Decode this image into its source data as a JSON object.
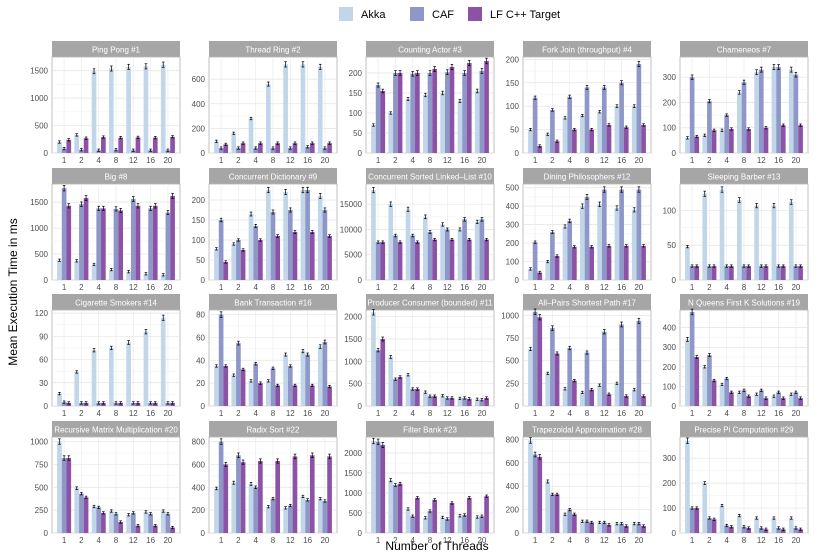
{
  "chart_data": {
    "type": "bar",
    "title": "",
    "xlabel": "Number of Threads",
    "ylabel": "Mean Execution Time in ms",
    "categories": [
      "1",
      "2",
      "4",
      "8",
      "12",
      "16",
      "20"
    ],
    "legend": {
      "placement": "top",
      "entries": [
        {
          "name": "Akka",
          "color": "#c2d6ea"
        },
        {
          "name": "CAF",
          "color": "#8e97c8"
        },
        {
          "name": "LF C++ Target",
          "color": "#8b52a6"
        }
      ]
    },
    "panels": [
      {
        "title": "Ping Pong #1",
        "ylim": [
          0,
          1750
        ],
        "yticks": [
          0,
          500,
          1000,
          1500
        ],
        "series": [
          {
            "name": "Akka",
            "values": [
              200,
              330,
              1490,
              1540,
              1570,
              1580,
              1610
            ]
          },
          {
            "name": "CAF",
            "values": [
              80,
              60,
              50,
              60,
              50,
              50,
              50
            ]
          },
          {
            "name": "LF C++ Target",
            "values": [
              240,
              270,
              290,
              280,
              285,
              280,
              295
            ]
          }
        ]
      },
      {
        "title": "Thread Ring #2",
        "ylim": [
          0,
          780
        ],
        "yticks": [
          0,
          200,
          400,
          600
        ],
        "series": [
          {
            "name": "Akka",
            "values": [
              95,
              160,
              280,
              560,
              720,
              720,
              700
            ]
          },
          {
            "name": "CAF",
            "values": [
              40,
              40,
              40,
              40,
              40,
              50,
              40
            ]
          },
          {
            "name": "LF C++ Target",
            "values": [
              70,
              80,
              80,
              80,
              80,
              80,
              80
            ]
          }
        ]
      },
      {
        "title": "Counting Actor #3",
        "ylim": [
          0,
          240
        ],
        "yticks": [
          0,
          50,
          100,
          150,
          200
        ],
        "series": [
          {
            "name": "Akka",
            "values": [
              70,
              100,
              135,
              145,
              150,
              130,
              155
            ]
          },
          {
            "name": "CAF",
            "values": [
              170,
              200,
              198,
              200,
              202,
              200,
              205
            ]
          },
          {
            "name": "LF C++ Target",
            "values": [
              155,
              200,
              200,
              210,
              215,
              225,
              230
            ]
          }
        ]
      },
      {
        "title": "Fork Join (throughput) #4",
        "ylim": [
          0,
          205
        ],
        "yticks": [
          0,
          50,
          100,
          150,
          200
        ],
        "series": [
          {
            "name": "Akka",
            "values": [
              50,
              40,
              75,
              80,
              88,
              100,
              100
            ]
          },
          {
            "name": "CAF",
            "values": [
              118,
              92,
              120,
              140,
              140,
              150,
              190
            ]
          },
          {
            "name": "LF C++ Target",
            "values": [
              15,
              25,
              50,
              50,
              60,
              55,
              60
            ]
          }
        ]
      },
      {
        "title": "Chameneos #7",
        "ylim": [
          0,
          380
        ],
        "yticks": [
          0,
          100,
          200,
          300
        ],
        "series": [
          {
            "name": "Akka",
            "values": [
              60,
              70,
              90,
              240,
              320,
              340,
              330
            ]
          },
          {
            "name": "CAF",
            "values": [
              300,
              205,
              150,
              280,
              330,
              340,
              310
            ]
          },
          {
            "name": "LF C++ Target",
            "values": [
              65,
              90,
              95,
              95,
              100,
              110,
              110
            ]
          }
        ]
      },
      {
        "title": "Big #8",
        "ylim": [
          0,
          1850
        ],
        "yticks": [
          0,
          500,
          1000,
          1500
        ],
        "series": [
          {
            "name": "Akka",
            "values": [
              380,
              370,
              300,
              200,
              160,
              120,
              100
            ]
          },
          {
            "name": "CAF",
            "values": [
              1770,
              1460,
              1380,
              1370,
              1560,
              1380,
              1300
            ]
          },
          {
            "name": "LF C++ Target",
            "values": [
              1430,
              1580,
              1380,
              1340,
              1430,
              1430,
              1620
            ]
          }
        ]
      },
      {
        "title": "Concurrent Dictionary #9",
        "ylim": [
          0,
          240
        ],
        "yticks": [
          0,
          50,
          100,
          150,
          200
        ],
        "series": [
          {
            "name": "Akka",
            "values": [
              78,
              90,
              165,
              225,
              220,
              225,
              210
            ]
          },
          {
            "name": "CAF",
            "values": [
              150,
              100,
              135,
              170,
              175,
              225,
              175
            ]
          },
          {
            "name": "LF C++ Target",
            "values": [
              45,
              75,
              100,
              110,
              120,
              120,
              110
            ]
          }
        ]
      },
      {
        "title": "Concurrent Sorted Linked–List #10",
        "ylim": [
          0,
          19000
        ],
        "yticks": [
          0,
          5000,
          10000,
          15000
        ],
        "series": [
          {
            "name": "Akka",
            "values": [
              17800,
              15000,
              14000,
              12500,
              11000,
              10000,
              11500
            ]
          },
          {
            "name": "CAF",
            "values": [
              7500,
              8800,
              8800,
              9500,
              10000,
              12000,
              12000
            ]
          },
          {
            "name": "LF C++ Target",
            "values": [
              7500,
              7500,
              7500,
              8000,
              8000,
              8000,
              8000
            ]
          }
        ]
      },
      {
        "title": "Dining Philosophers #12",
        "ylim": [
          0,
          520
        ],
        "yticks": [
          0,
          100,
          200,
          300,
          400,
          500
        ],
        "series": [
          {
            "name": "Akka",
            "values": [
              60,
              100,
              290,
              400,
              410,
              390,
              380
            ]
          },
          {
            "name": "CAF",
            "values": [
              205,
              260,
              320,
              450,
              490,
              490,
              490
            ]
          },
          {
            "name": "LF C++ Target",
            "values": [
              40,
              130,
              180,
              180,
              185,
              185,
              185
            ]
          }
        ]
      },
      {
        "title": "Sleeping Barber #13",
        "ylim": [
          0,
          138
        ],
        "yticks": [
          0,
          50,
          100
        ],
        "series": [
          {
            "name": "Akka",
            "values": [
              48,
              124,
              130,
              115,
              107,
              107,
              112
            ]
          },
          {
            "name": "CAF",
            "values": [
              20,
              20,
              20,
              20,
              20,
              20,
              20
            ]
          },
          {
            "name": "LF C++ Target",
            "values": [
              20,
              20,
              20,
              20,
              20,
              20,
              20
            ]
          }
        ]
      },
      {
        "title": "Cigarette Smokers #14",
        "ylim": [
          0,
          124
        ],
        "yticks": [
          0,
          30,
          60,
          90,
          120
        ],
        "series": [
          {
            "name": "Akka",
            "values": [
              16,
              44,
              72,
              75,
              82,
              96,
              114
            ]
          },
          {
            "name": "CAF",
            "values": [
              5,
              4,
              4,
              4,
              4,
              4,
              4
            ]
          },
          {
            "name": "LF C++ Target",
            "values": [
              4,
              4,
              4,
              4,
              4,
              4,
              4
            ]
          }
        ]
      },
      {
        "title": "Bank Transaction #16",
        "ylim": [
          0,
          84
        ],
        "yticks": [
          0,
          20,
          40,
          60,
          80
        ],
        "series": [
          {
            "name": "Akka",
            "values": [
              35,
              27,
              22,
              22,
              45,
              48,
              52
            ]
          },
          {
            "name": "CAF",
            "values": [
              80,
              55,
              37,
              33,
              35,
              45,
              56
            ]
          },
          {
            "name": "LF C++ Target",
            "values": [
              35,
              32,
              20,
              18,
              18,
              18,
              17
            ]
          }
        ]
      },
      {
        "title": "Producer Consumer (bounded) #11",
        "ylim": [
          0,
          2150
        ],
        "yticks": [
          0,
          500,
          1000,
          1500,
          2000
        ],
        "series": [
          {
            "name": "Akka",
            "values": [
              2100,
              1100,
              700,
              310,
              230,
              170,
              150
            ]
          },
          {
            "name": "CAF",
            "values": [
              1250,
              600,
              380,
              220,
              180,
              180,
              140
            ]
          },
          {
            "name": "LF C++ Target",
            "values": [
              1500,
              650,
              380,
              220,
              180,
              160,
              180
            ]
          }
        ]
      },
      {
        "title": "All–Pairs Shortest Path #17",
        "ylim": [
          0,
          1060
        ],
        "yticks": [
          0,
          250,
          500,
          750,
          1000
        ],
        "series": [
          {
            "name": "Akka",
            "values": [
              630,
              360,
              190,
              150,
              230,
              250,
              180
            ]
          },
          {
            "name": "CAF",
            "values": [
              1040,
              860,
              640,
              590,
              820,
              900,
              940
            ]
          },
          {
            "name": "LF C++ Target",
            "values": [
              980,
              580,
              280,
              180,
              130,
              110,
              110
            ]
          }
        ]
      },
      {
        "title": "N Queens First K Solutions #19",
        "ylim": [
          0,
          490
        ],
        "yticks": [
          0,
          100,
          200,
          300,
          400
        ],
        "series": [
          {
            "name": "Akka",
            "values": [
              340,
              200,
              110,
              70,
              60,
              50,
              60
            ]
          },
          {
            "name": "CAF",
            "values": [
              480,
              260,
              140,
              80,
              80,
              70,
              70
            ]
          },
          {
            "name": "LF C++ Target",
            "values": [
              250,
              130,
              70,
              50,
              40,
              40,
              40
            ]
          }
        ]
      },
      {
        "title": "Recursive Matrix Multiplication #20",
        "ylim": [
          0,
          1050
        ],
        "yticks": [
          0,
          250,
          500,
          750,
          1000
        ],
        "series": [
          {
            "name": "Akka",
            "values": [
              1000,
              490,
              290,
              240,
              200,
              230,
              240
            ]
          },
          {
            "name": "CAF",
            "values": [
              820,
              430,
              280,
              210,
              220,
              210,
              210
            ]
          },
          {
            "name": "LF C++ Target",
            "values": [
              820,
              390,
              220,
              120,
              80,
              80,
              60
            ]
          }
        ]
      },
      {
        "title": "Radix Sort #22",
        "ylim": [
          0,
          840
        ],
        "yticks": [
          0,
          200,
          400,
          600,
          800
        ],
        "series": [
          {
            "name": "Akka",
            "values": [
              390,
              440,
              430,
              230,
              220,
              320,
              300
            ]
          },
          {
            "name": "CAF",
            "values": [
              800,
              680,
              400,
              300,
              240,
              290,
              280
            ]
          },
          {
            "name": "LF C++ Target",
            "values": [
              600,
              620,
              630,
              630,
              670,
              680,
              670
            ]
          }
        ]
      },
      {
        "title": "Filter Bank #23",
        "ylim": [
          0,
          2400
        ],
        "yticks": [
          0,
          500,
          1000,
          1500,
          2000
        ],
        "series": [
          {
            "name": "Akka",
            "values": [
              2300,
              1320,
              600,
              380,
              390,
              430,
              400
            ]
          },
          {
            "name": "CAF",
            "values": [
              2280,
              1200,
              420,
              550,
              350,
              450,
              420
            ]
          },
          {
            "name": "LF C++ Target",
            "values": [
              2200,
              1230,
              880,
              830,
              750,
              880,
              920
            ]
          }
        ]
      },
      {
        "title": "Trapezoidal Approximation #28",
        "ylim": [
          0,
          820
        ],
        "yticks": [
          0,
          200,
          400,
          600,
          800
        ],
        "series": [
          {
            "name": "Akka",
            "values": [
              790,
              440,
              160,
              100,
              90,
              80,
              80
            ]
          },
          {
            "name": "CAF",
            "values": [
              670,
              330,
              200,
              100,
              90,
              80,
              80
            ]
          },
          {
            "name": "LF C++ Target",
            "values": [
              650,
              330,
              160,
              90,
              70,
              60,
              60
            ]
          }
        ]
      },
      {
        "title": "Precise Pi Computation #29",
        "ylim": [
          0,
          385
        ],
        "yticks": [
          0,
          100,
          200,
          300
        ],
        "series": [
          {
            "name": "Akka",
            "values": [
              370,
              200,
              110,
              70,
              60,
              60,
              60
            ]
          },
          {
            "name": "CAF",
            "values": [
              100,
              60,
              30,
              25,
              20,
              20,
              20
            ]
          },
          {
            "name": "LF C++ Target",
            "values": [
              100,
              55,
              25,
              20,
              15,
              15,
              15
            ]
          }
        ]
      }
    ]
  }
}
